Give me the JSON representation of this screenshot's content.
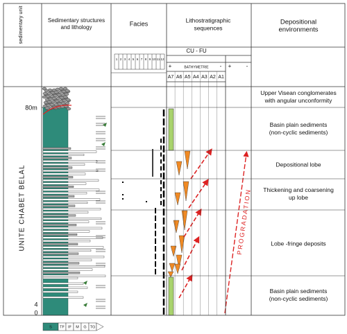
{
  "headers": {
    "unit": "sedimentary unit",
    "lithology": [
      "Sedimentary structures",
      "and lithology"
    ],
    "facies": "Facies",
    "sequences": [
      "Lithostratigraphic",
      "sequences"
    ],
    "environments": [
      "Depositional",
      "environments"
    ]
  },
  "subheader": {
    "cu_fu": "CU - FU",
    "bathymetry": "BATHYMETRIE",
    "bathy_plus": "+",
    "bathy_minus": "-",
    "outer_plus": "+",
    "outer_minus": "-"
  },
  "facies_numbers": [
    1,
    2,
    3,
    4,
    5,
    6,
    7,
    8,
    9,
    10,
    11,
    12
  ],
  "sequence_columns": [
    "A7",
    "A6",
    "A5",
    "A4",
    "A3",
    "A2",
    "A1"
  ],
  "depth_labels": [
    "80m",
    "4",
    "0"
  ],
  "unit_name": "UNITE CHABET BELAL",
  "trend": "PROGRADATION",
  "environments": [
    [
      "Upper Visean conglomerates",
      "with angular unconformity"
    ],
    [
      "Basin plain sediments",
      "(non-cyclic sediments)"
    ],
    [
      "Depositional lobe"
    ],
    [
      "Thickening and coarsening",
      "up lobe"
    ],
    [
      "Lobe -fringe deposits"
    ],
    [
      "Basin plain sediments",
      "(non-cyclic sediments)"
    ]
  ],
  "legend": [
    "S",
    "TF",
    "IF",
    "M",
    "G",
    "TG"
  ]
}
